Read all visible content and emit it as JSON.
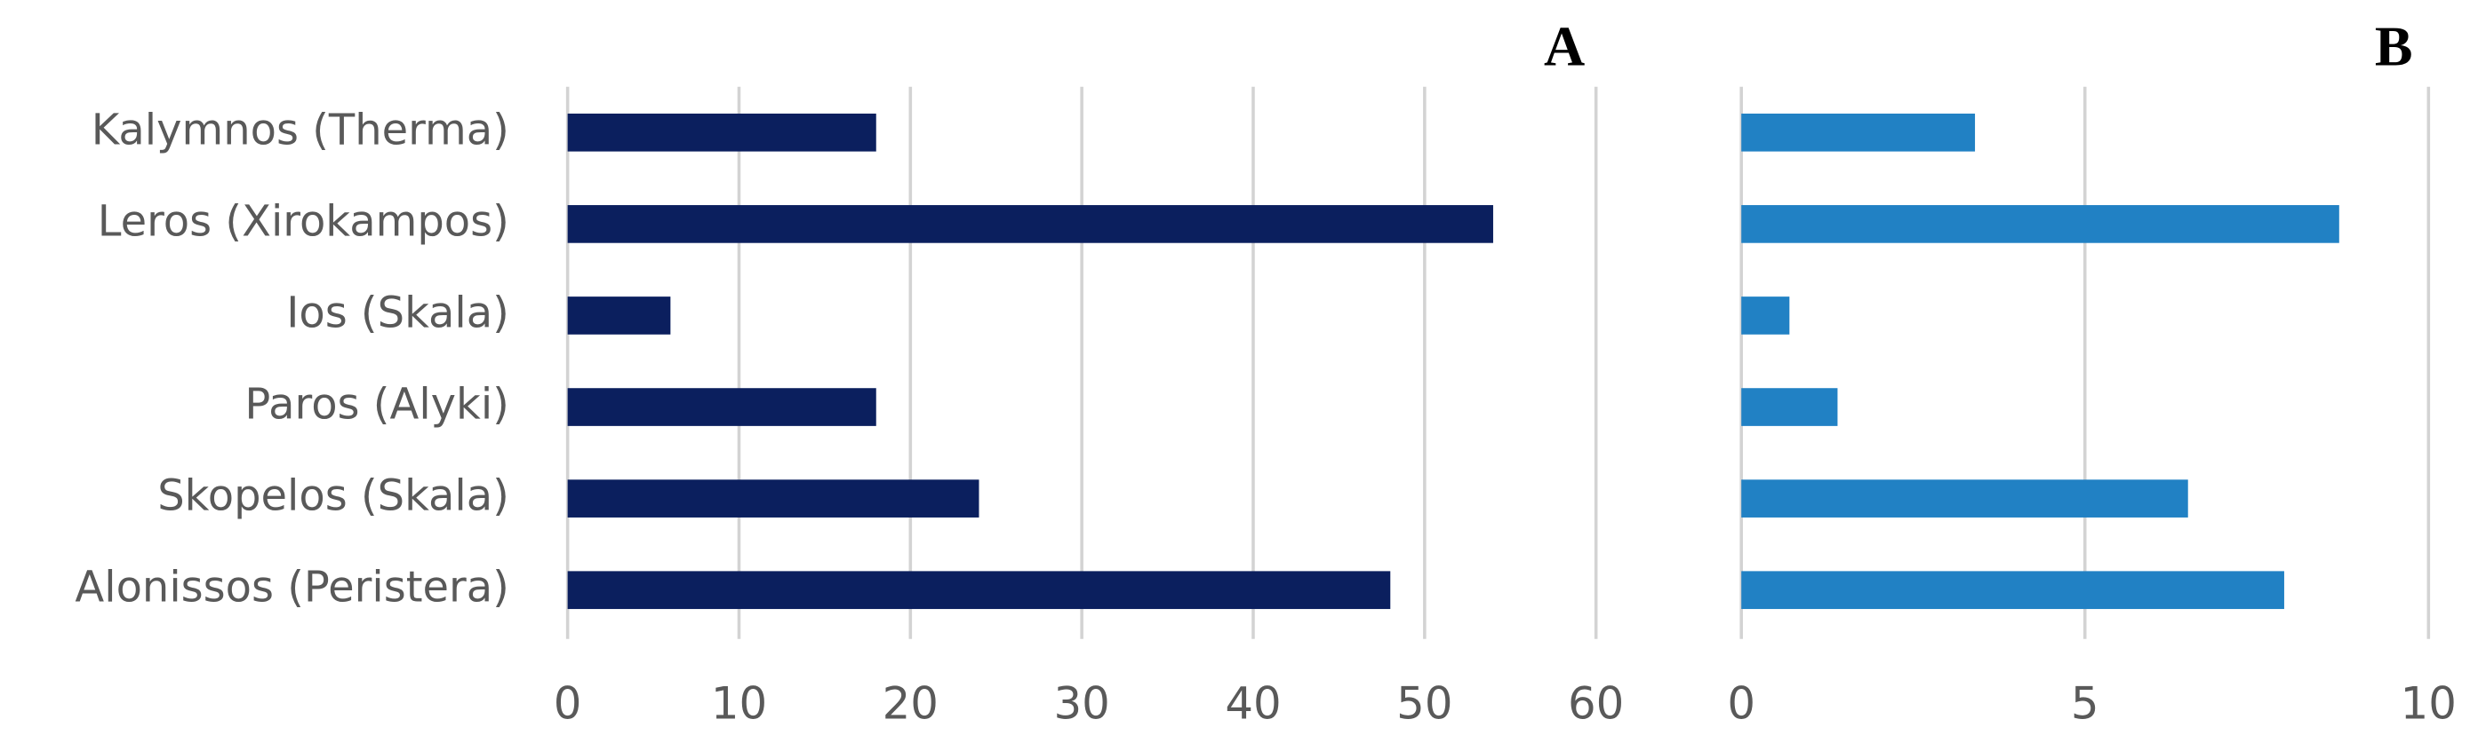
{
  "chart_data": [
    {
      "type": "barh",
      "title": "A",
      "categories": [
        "Kalymnos (Therma)",
        "Leros (Xirokampos)",
        "Ios (Skala)",
        "Paros (Alyki)",
        "Skopelos (Skala)",
        "Alonissos (Peristera)"
      ],
      "values": [
        18,
        54,
        6,
        18,
        24,
        48
      ],
      "color": "#0b1f5e",
      "xlim": [
        0,
        60
      ],
      "xticks": [
        0,
        10,
        20,
        30,
        40,
        50,
        60
      ],
      "grid": true
    },
    {
      "type": "barh",
      "title": "B",
      "values": [
        3.4,
        8.7,
        0.7,
        1.4,
        6.5,
        7.9
      ],
      "color": "#2181c4",
      "xlim": [
        0,
        10
      ],
      "xticks": [
        0,
        5,
        10
      ],
      "grid": true
    }
  ]
}
